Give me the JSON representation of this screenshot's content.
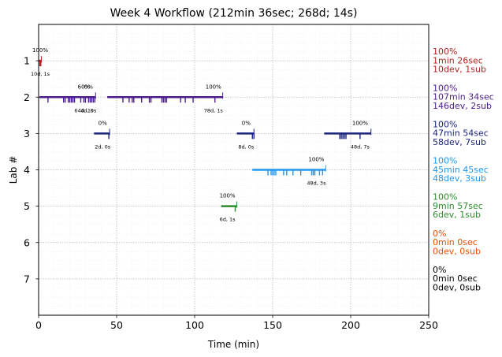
{
  "chart_data": {
    "type": "timeline",
    "title": "Week 4 Workflow (212min 36sec; 268d; 14s)",
    "xlabel": "Time (min)",
    "ylabel": "Lab #",
    "xlim": [
      0,
      250
    ],
    "ylim": [
      8,
      0
    ],
    "x_ticks": [
      "0",
      "50",
      "100",
      "150",
      "200",
      "250"
    ],
    "y_ticks": [
      "1",
      "2",
      "3",
      "4",
      "5",
      "6",
      "7"
    ],
    "grid": true,
    "lanes": [
      {
        "lab": 1,
        "color": "#b22222",
        "segments": [
          [
            0.3,
            1.8
          ]
        ],
        "ticks": [
          0.8,
          1.4
        ],
        "annotations": [
          {
            "x": 1.0,
            "pct": "100%",
            "sub": "10d, 1s"
          }
        ],
        "summary": [
          "100%",
          "1min 26sec",
          "10dev, 1sub"
        ]
      },
      {
        "lab": 2,
        "color": "#4b1c8c",
        "segments": [
          [
            0.5,
            36.5
          ],
          [
            44,
            118
          ]
        ],
        "ticks": [
          6,
          16,
          17,
          19,
          20,
          21,
          22,
          23,
          27,
          29,
          30,
          32,
          33,
          34,
          35,
          36,
          54,
          58,
          60,
          61,
          66,
          71,
          72,
          79,
          80,
          81,
          82,
          91,
          94,
          99,
          113
        ],
        "annotations": [
          {
            "x": 29,
            "pct": "60%",
            "sub": "64d, 1s"
          },
          {
            "x": 32,
            "pct": "0%",
            "sub": "4d, 0s"
          },
          {
            "x": 112,
            "pct": "100%",
            "sub": "78d, 1s"
          }
        ],
        "summary": [
          "100%",
          "107min 34sec",
          "146dev, 2sub"
        ]
      },
      {
        "lab": 3,
        "color": "#1a237e",
        "segments": [
          [
            35.5,
            45.5
          ],
          [
            127,
            138
          ],
          [
            183,
            213
          ]
        ],
        "ticks": [
          45,
          137,
          138,
          193,
          194,
          195,
          196,
          197,
          206
        ],
        "annotations": [
          {
            "x": 41,
            "pct": "0%",
            "sub": "2d, 0s"
          },
          {
            "x": 133,
            "pct": "0%",
            "sub": "8d, 0s"
          },
          {
            "x": 206,
            "pct": "100%",
            "sub": "48d, 7s"
          }
        ],
        "summary": [
          "100%",
          "47min 54sec",
          "58dev, 7sub"
        ]
      },
      {
        "lab": 4,
        "color": "#2196f3",
        "segments": [
          [
            137,
            184
          ]
        ],
        "ticks": [
          147,
          149,
          150,
          151,
          152,
          157,
          159,
          163,
          168,
          175,
          176,
          177,
          180,
          182
        ],
        "annotations": [
          {
            "x": 178,
            "pct": "100%",
            "sub": "48d, 3s"
          }
        ],
        "summary": [
          "100%",
          "45min 45sec",
          "48dev, 3sub"
        ]
      },
      {
        "lab": 5,
        "color": "#2e8b2e",
        "segments": [
          [
            117,
            127
          ]
        ],
        "ticks": [
          126
        ],
        "annotations": [
          {
            "x": 121,
            "pct": "100%",
            "sub": "6d, 1s"
          }
        ],
        "summary": [
          "100%",
          "9min 57sec",
          "6dev, 1sub"
        ]
      },
      {
        "lab": 6,
        "color": "#e65100",
        "segments": [],
        "ticks": [],
        "annotations": [],
        "summary": [
          "0%",
          "0min 0sec",
          "0dev, 0sub"
        ]
      },
      {
        "lab": 7,
        "color": "#000000",
        "segments": [],
        "ticks": [],
        "annotations": [],
        "summary": [
          "0%",
          "0min 0sec",
          "0dev, 0sub"
        ]
      }
    ]
  }
}
